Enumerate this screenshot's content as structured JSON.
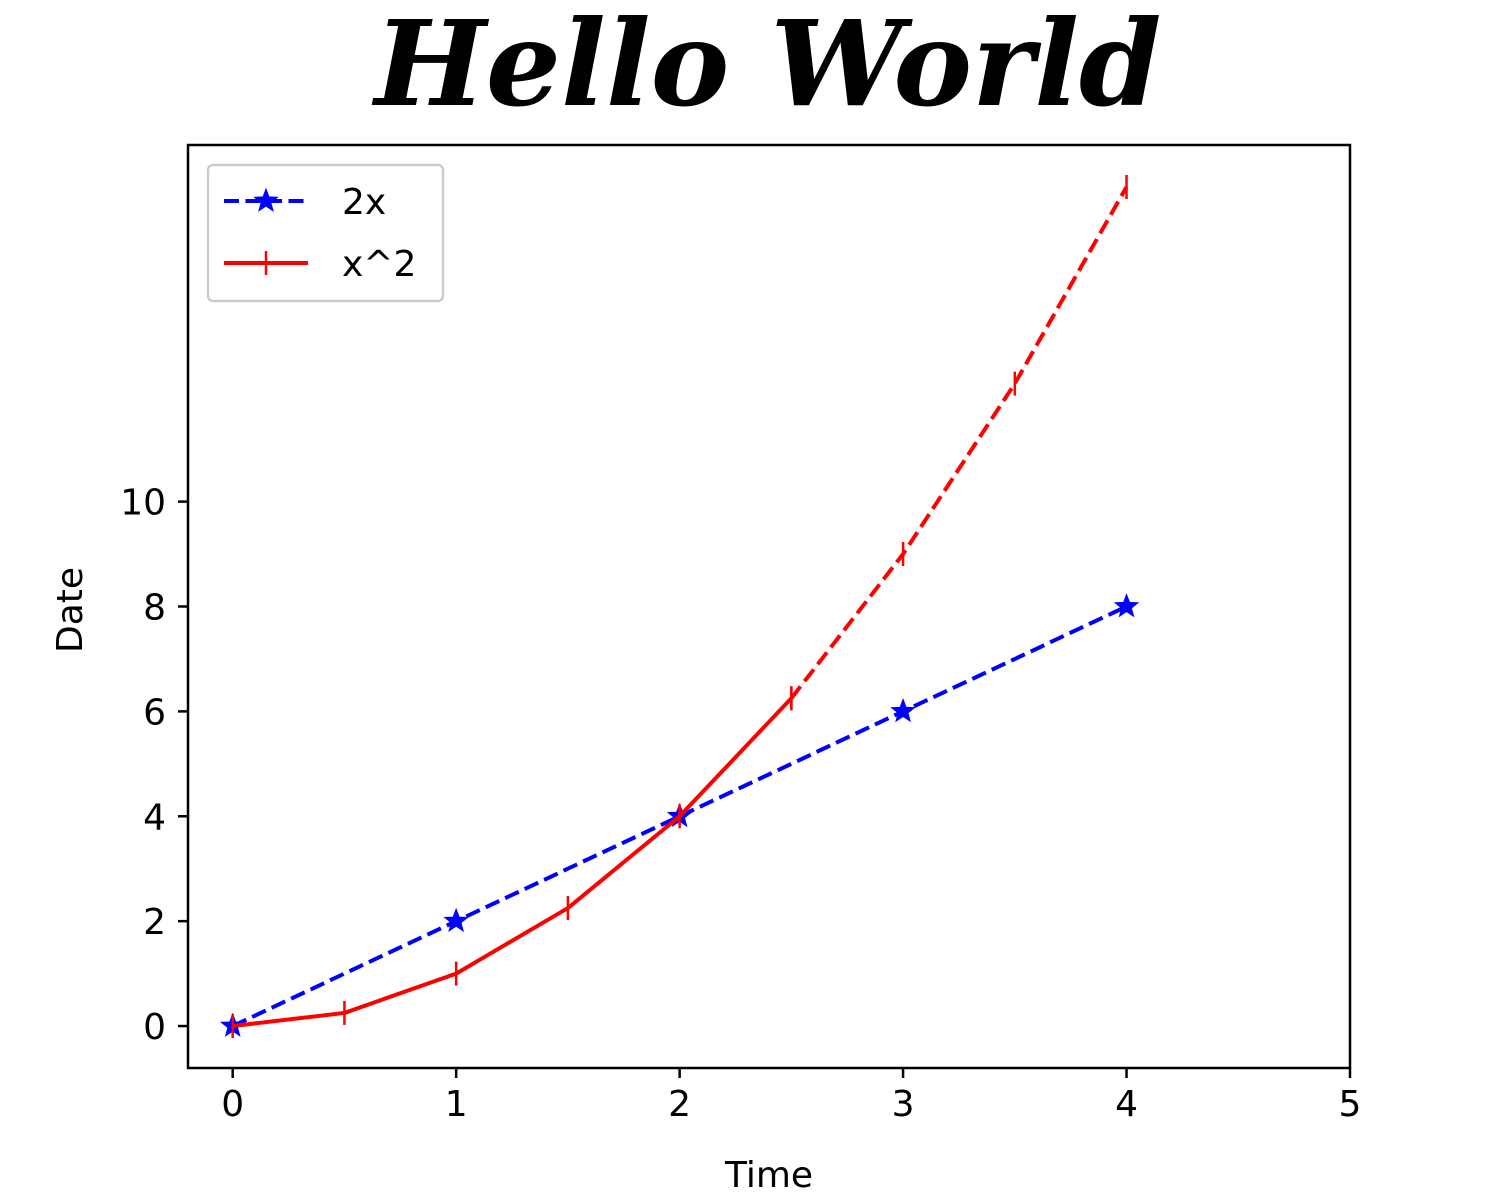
{
  "chart_data": {
    "type": "line",
    "title": "Hello World",
    "xlabel": "Time",
    "ylabel": "Date",
    "xlim": [
      -0.2,
      5
    ],
    "ylim": [
      -0.8,
      16.8
    ],
    "xticks": [
      0,
      1,
      2,
      3,
      4,
      5
    ],
    "yticks": [
      0,
      2,
      4,
      6,
      8,
      10
    ],
    "grid": false,
    "legend_position": "top-left",
    "series": [
      {
        "name": "2x",
        "color": "#0000ff",
        "linestyle": "dashed",
        "marker": "star",
        "x": [
          0,
          1,
          2,
          3,
          4
        ],
        "y": [
          0,
          2,
          4,
          6,
          8
        ]
      },
      {
        "name": "x^2",
        "color": "#ff0000",
        "linestyle": "solid",
        "marker": "plus",
        "x": [
          0,
          0.5,
          1,
          1.5,
          2,
          2.5
        ],
        "y": [
          0,
          0.25,
          1,
          2.25,
          4,
          6.25
        ]
      },
      {
        "name": "",
        "color": "#ff0000",
        "linestyle": "dashed",
        "marker": "plus",
        "x": [
          2.5,
          3,
          3.5,
          4
        ],
        "y": [
          6.25,
          9,
          12.25,
          16
        ]
      }
    ]
  }
}
